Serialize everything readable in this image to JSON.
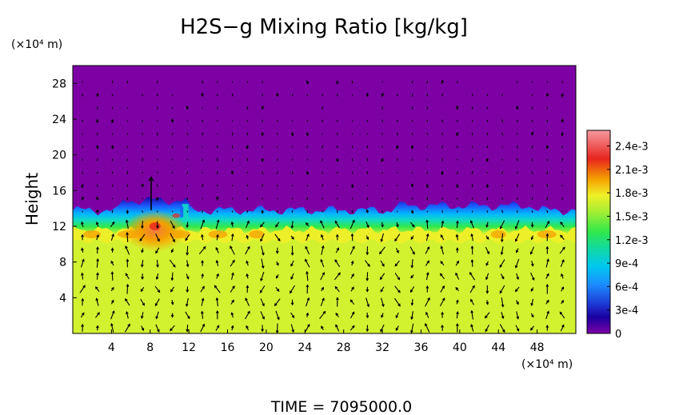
{
  "chart_data": {
    "type": "heatmap",
    "title": "H2S−g Mixing Ratio [kg/kg]",
    "ylabel": "Height",
    "xunit": "(×10⁴ m)",
    "yunit": "(×10⁴ m)",
    "footer": "TIME  =  7095000.0",
    "xlim": [
      0,
      52
    ],
    "ylim": [
      0,
      30
    ],
    "xticks": [
      4,
      8,
      12,
      16,
      20,
      24,
      28,
      32,
      36,
      40,
      44,
      48
    ],
    "yticks": [
      4,
      8,
      12,
      16,
      20,
      24,
      28
    ],
    "colorbar": {
      "min": 0,
      "max": 0.0026,
      "ticks": [
        {
          "value": 0,
          "label": "0"
        },
        {
          "value": 0.0003,
          "label": "3e-4"
        },
        {
          "value": 0.0006,
          "label": "6e-4"
        },
        {
          "value": 0.0009,
          "label": "9e-4"
        },
        {
          "value": 0.0012,
          "label": "1.2e-3"
        },
        {
          "value": 0.0015,
          "label": "1.5e-3"
        },
        {
          "value": 0.0018,
          "label": "1.8e-3"
        },
        {
          "value": 0.0021,
          "label": "2.1e-3"
        },
        {
          "value": 0.0024,
          "label": "2.4e-3"
        }
      ]
    },
    "field": {
      "lower_layer_value": 0.00175,
      "upper_layer_value": 0,
      "interface_height": 12.5,
      "hotspot": {
        "x": 8.5,
        "y": 11.5,
        "value": 0.0023
      }
    },
    "colors": {
      "purple": "#7d00a5",
      "navy": "#1a00a0",
      "blue": "#1c5aff",
      "cyan": "#00b4ff",
      "teal": "#12d9c4",
      "green": "#30e84a",
      "yellowgreen": "#d2f230",
      "yellow": "#f0f028",
      "orange": "#f5a000",
      "red": "#e8251e",
      "pink": "#f59aa0"
    }
  }
}
